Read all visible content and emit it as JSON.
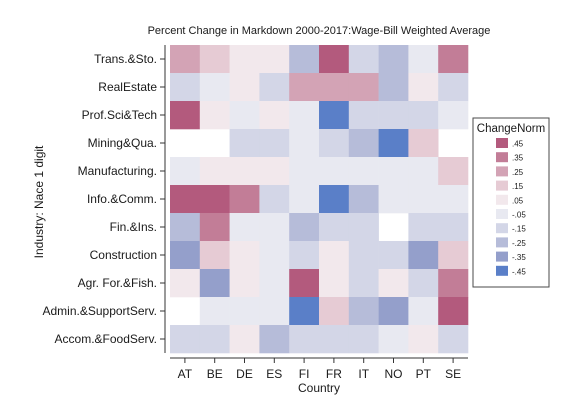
{
  "chart_data": {
    "type": "heatmap",
    "title": "Percent Change in Markdown 2000-2017:Wage-Bill Weighted Average",
    "xlabel": "Country",
    "ylabel": "Industry: Nace 1 digit",
    "x_categories": [
      "AT",
      "BE",
      "DE",
      "ES",
      "FI",
      "FR",
      "IT",
      "NO",
      "PT",
      "SE"
    ],
    "y_categories": [
      "Trans.&Sto.",
      "RealEstate",
      "Prof.Sci&Tech",
      "Mining&Qua.",
      "Manufacturing.",
      "Info.&Comm.",
      "Fin.&Ins.",
      "Construction",
      "Agr. For.&Fish.",
      "Admin.&SupportServ.",
      "Accom.&FoodServ."
    ],
    "values": [
      [
        0.25,
        0.15,
        0.05,
        0.05,
        -0.25,
        0.45,
        -0.15,
        -0.25,
        -0.05,
        0.35
      ],
      [
        -0.15,
        -0.05,
        0.05,
        -0.15,
        0.25,
        0.25,
        0.25,
        -0.25,
        0.05,
        -0.15
      ],
      [
        0.45,
        0.05,
        -0.05,
        0.05,
        -0.05,
        -0.45,
        -0.15,
        -0.15,
        -0.15,
        -0.05
      ],
      [
        null,
        null,
        -0.15,
        -0.15,
        -0.05,
        -0.15,
        -0.25,
        -0.45,
        0.15,
        null
      ],
      [
        -0.05,
        0.05,
        0.05,
        0.05,
        -0.05,
        -0.05,
        -0.05,
        -0.05,
        -0.05,
        0.15
      ],
      [
        0.45,
        0.45,
        0.35,
        -0.15,
        -0.05,
        -0.45,
        -0.25,
        -0.05,
        -0.05,
        -0.05
      ],
      [
        -0.25,
        0.35,
        -0.05,
        -0.05,
        -0.25,
        -0.15,
        -0.15,
        null,
        -0.15,
        -0.15
      ],
      [
        -0.35,
        0.15,
        0.05,
        -0.05,
        -0.15,
        0.05,
        -0.15,
        -0.15,
        -0.35,
        0.15
      ],
      [
        0.05,
        -0.35,
        0.05,
        -0.05,
        0.45,
        0.05,
        -0.15,
        0.05,
        -0.15,
        0.35
      ],
      [
        null,
        -0.05,
        -0.05,
        -0.05,
        -0.45,
        0.15,
        -0.25,
        -0.35,
        -0.05,
        0.45
      ],
      [
        -0.15,
        -0.15,
        0.05,
        -0.25,
        -0.15,
        -0.15,
        -0.15,
        -0.05,
        0.05,
        -0.15
      ]
    ],
    "legend": {
      "title": "ChangeNorm",
      "labels": [
        ".45",
        ".35",
        ".25",
        ".15",
        ".05",
        "-.05",
        "-.15",
        "-.25",
        "-.35",
        "-.45"
      ],
      "levels": [
        0.45,
        0.35,
        0.25,
        0.15,
        0.05,
        -0.05,
        -0.15,
        -0.25,
        -0.35,
        -0.45
      ],
      "colors": [
        "#b35a7d",
        "#c27d97",
        "#d3a3b5",
        "#e6cbd4",
        "#f2e8ec",
        "#e8e9f1",
        "#d3d6e7",
        "#b6bcd9",
        "#949fcb",
        "#5a7fc8"
      ],
      "position": "right"
    },
    "grid": false
  }
}
